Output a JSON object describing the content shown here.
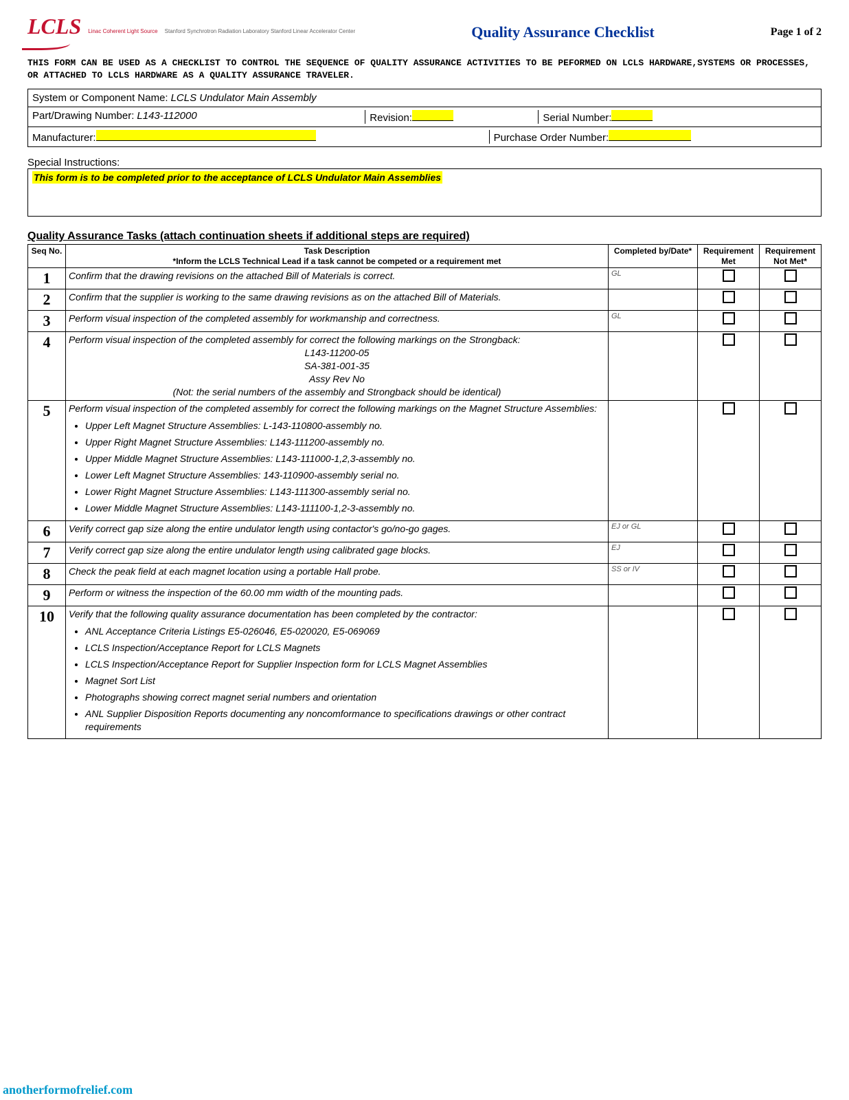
{
  "header": {
    "logo_text": "LCLS",
    "logo_sub": "Linac Coherent Light Source",
    "logo_lab": "Stanford Synchrotron Radiation Laboratory\nStanford Linear Accelerator Center",
    "title": "Quality Assurance Checklist",
    "page": "Page 1 of 2"
  },
  "intro": "THIS FORM CAN BE USED AS A CHECKLIST TO CONTROL THE SEQUENCE OF QUALITY ASSURANCE ACTIVITIES TO BE PEFORMED ON LCLS HARDWARE,SYSTEMS OR PROCESSES, OR ATTACHED TO LCLS HARDWARE AS A QUALITY ASSURANCE TRAVELER.",
  "info": {
    "system_label": "System or Component Name:",
    "system_value": "LCLS Undulator Main Assembly",
    "part_label": "Part/Drawing Number:",
    "part_value": "L143-112000",
    "revision_label": "Revision:",
    "serial_label": "Serial Number:",
    "manufacturer_label": "Manufacturer:",
    "po_label": "Purchase Order Number:"
  },
  "special": {
    "label": "Special Instructions:",
    "text": "This form is to be completed prior to the acceptance of LCLS Undulator Main Assemblies"
  },
  "tasks_heading": "Quality Assurance Tasks (attach continuation sheets if additional steps are required)",
  "table_headers": {
    "seq": "Seq No.",
    "desc": "Task Description",
    "desc_note": "*Inform the LCLS Technical Lead if a task cannot be competed or a requirement met",
    "date": "Completed by/Date*",
    "met": "Requirement Met",
    "notmet": "Requirement Not Met*"
  },
  "rows": [
    {
      "seq": "1",
      "desc": "Confirm that the drawing revisions on the attached Bill of Materials is correct.",
      "date": "GL"
    },
    {
      "seq": "2",
      "desc": "Confirm that the supplier is working to the same drawing revisions as on the attached Bill of Materials.",
      "date": ""
    },
    {
      "seq": "3",
      "desc": "Perform visual inspection of the completed assembly for workmanship and correctness.",
      "date": "GL"
    },
    {
      "seq": "4",
      "desc": "Perform visual inspection of the completed assembly for correct the following markings on the Strongback:",
      "sub_center": [
        "L143-11200-05",
        "SA-381-001-35",
        "Assy Rev No"
      ],
      "footer": "(Not: the serial numbers of the assembly and Strongback should be identical)",
      "date": ""
    },
    {
      "seq": "5",
      "desc": "Perform visual inspection of the completed assembly for correct the following markings on the Magnet Structure Assemblies:",
      "bullets": [
        "Upper Left Magnet Structure Assemblies:  L-143-110800-assembly no.",
        "Upper Right Magnet Structure Assemblies: L143-111200-assembly no.",
        "Upper Middle Magnet Structure Assemblies: L143-111000-1,2,3-assembly no.",
        "Lower Left Magnet Structure Assemblies: 143-110900-assembly serial no.",
        "Lower Right Magnet Structure Assemblies: L143-111300-assembly serial no.",
        "Lower Middle Magnet Structure Assemblies: L143-111100-1,2-3-assembly no."
      ],
      "date": ""
    },
    {
      "seq": "6",
      "desc": "Verify correct gap size along the entire undulator length using contactor's go/no-go gages.",
      "date": "EJ or GL"
    },
    {
      "seq": "7",
      "desc": "Verify correct gap size along the entire undulator length using calibrated gage blocks.",
      "date": "EJ"
    },
    {
      "seq": "8",
      "desc": "Check the peak field at each magnet location using a portable Hall probe.",
      "date": "SS or IV"
    },
    {
      "seq": "9",
      "desc": "Perform or witness the inspection of the 60.00 mm width of the mounting pads.",
      "date": ""
    },
    {
      "seq": "10",
      "desc": "Verify that the following quality assurance documentation has been completed by the contractor:",
      "bullets": [
        "ANL Acceptance Criteria Listings E5-026046, E5-020020, E5-069069",
        "LCLS Inspection/Acceptance Report for LCLS Magnets",
        "LCLS Inspection/Acceptance Report for Supplier Inspection form for LCLS Magnet Assemblies",
        "Magnet Sort List",
        "Photographs showing correct magnet serial numbers and orientation",
        "ANL Supplier Disposition Reports documenting any noncomformance to specifications drawings or other contract requirements"
      ],
      "date": ""
    }
  ],
  "watermark": "anotherformofrelief.com",
  "colors": {
    "highlight": "#ffff00",
    "logo": "#c41230",
    "title": "#003399"
  }
}
